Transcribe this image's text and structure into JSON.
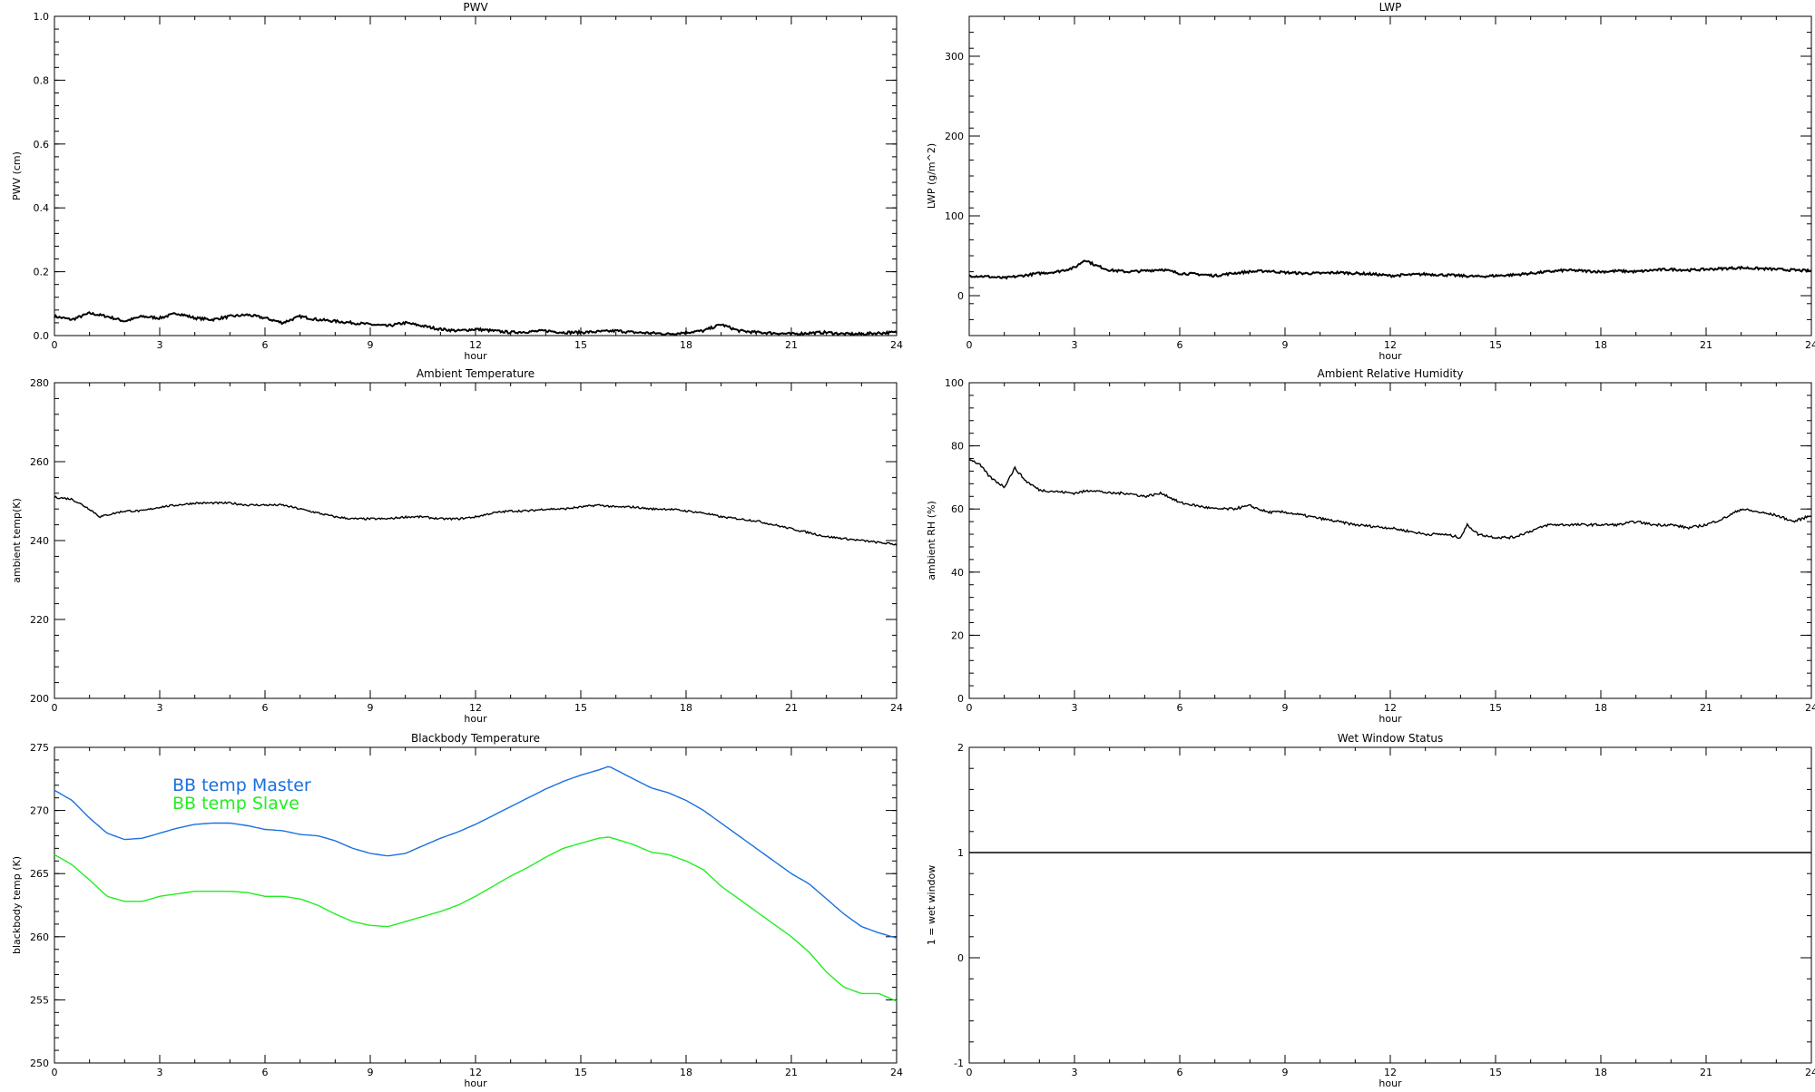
{
  "chart_data": [
    {
      "type": "line",
      "title": "PWV",
      "xlabel": "hour",
      "ylabel": "PWV (cm)",
      "xlim": [
        0,
        24
      ],
      "ylim": [
        0,
        1.0
      ],
      "xticks": [
        "0",
        "3",
        "6",
        "9",
        "12",
        "15",
        "18",
        "21",
        "24"
      ],
      "yticks": [
        "0.0",
        "0.2",
        "0.4",
        "0.6",
        "0.8",
        "1.0"
      ],
      "series": [
        {
          "color": "#000000",
          "noise": 0.004,
          "x": [
            0,
            0.5,
            1,
            1.5,
            2,
            2.5,
            3,
            3.5,
            4,
            4.5,
            5,
            5.5,
            6,
            6.5,
            7,
            7.5,
            8,
            8.5,
            9,
            9.5,
            10,
            10.5,
            11,
            11.5,
            12,
            12.5,
            13,
            13.5,
            14,
            14.5,
            15,
            15.5,
            16,
            16.5,
            17,
            17.5,
            18,
            18.5,
            19,
            19.5,
            20,
            20.5,
            21,
            21.5,
            22,
            22.5,
            23,
            23.5,
            24
          ],
          "y": [
            0.06,
            0.05,
            0.07,
            0.06,
            0.045,
            0.06,
            0.055,
            0.07,
            0.055,
            0.05,
            0.06,
            0.065,
            0.055,
            0.04,
            0.06,
            0.05,
            0.045,
            0.04,
            0.035,
            0.03,
            0.04,
            0.03,
            0.02,
            0.015,
            0.02,
            0.015,
            0.01,
            0.012,
            0.015,
            0.01,
            0.01,
            0.012,
            0.015,
            0.01,
            0.008,
            0.005,
            0.01,
            0.015,
            0.035,
            0.015,
            0.01,
            0.008,
            0.005,
            0.008,
            0.01,
            0.005,
            0.005,
            0.008,
            0.01
          ]
        }
      ]
    },
    {
      "type": "line",
      "title": "LWP",
      "xlabel": "hour",
      "ylabel": "LWP (g/m^2)",
      "xlim": [
        0,
        24
      ],
      "ylim": [
        -50,
        350
      ],
      "xticks": [
        "0",
        "3",
        "6",
        "9",
        "12",
        "15",
        "18",
        "21",
        "24"
      ],
      "yticks": [
        "0",
        "100",
        "200",
        "300"
      ],
      "series": [
        {
          "color": "#000000",
          "noise": 1.5,
          "x": [
            0,
            0.5,
            1,
            1.5,
            2,
            2.5,
            3,
            3.3,
            3.6,
            4,
            4.5,
            5,
            5.5,
            6,
            6.5,
            7,
            7.5,
            8,
            8.5,
            9,
            9.5,
            10,
            10.5,
            11,
            11.5,
            12,
            12.5,
            13,
            13.5,
            14,
            14.5,
            15,
            15.5,
            16,
            16.5,
            17,
            17.5,
            18,
            18.5,
            19,
            19.5,
            20,
            20.5,
            21,
            21.5,
            22,
            22.5,
            23,
            23.5,
            24
          ],
          "y": [
            25,
            24,
            22,
            25,
            28,
            30,
            35,
            45,
            38,
            32,
            30,
            31,
            33,
            28,
            27,
            25,
            28,
            30,
            31,
            29,
            28,
            28,
            29,
            28,
            27,
            25,
            26,
            27,
            26,
            25,
            24,
            25,
            26,
            28,
            30,
            32,
            31,
            30,
            31,
            30,
            32,
            33,
            32,
            33,
            34,
            35,
            34,
            33,
            32,
            31
          ]
        }
      ]
    },
    {
      "type": "line",
      "title": "Ambient Temperature",
      "xlabel": "hour",
      "ylabel": "ambient temp(K)",
      "xlim": [
        0,
        24
      ],
      "ylim": [
        200,
        280
      ],
      "xticks": [
        "0",
        "3",
        "6",
        "9",
        "12",
        "15",
        "18",
        "21",
        "24"
      ],
      "yticks": [
        "200",
        "220",
        "240",
        "260",
        "280"
      ],
      "series": [
        {
          "color": "#000000",
          "noise": 0.25,
          "x": [
            0,
            0.5,
            1,
            1.3,
            1.5,
            2,
            2.5,
            3,
            3.5,
            4,
            4.5,
            5,
            5.5,
            6,
            6.5,
            7,
            7.5,
            8,
            8.5,
            9,
            9.5,
            10,
            10.5,
            11,
            11.5,
            12,
            12.5,
            13,
            13.5,
            14,
            14.5,
            15,
            15.5,
            16,
            16.5,
            17,
            17.5,
            18,
            18.5,
            19,
            19.5,
            20,
            20.5,
            21,
            21.5,
            22,
            22.5,
            23,
            23.5,
            24
          ],
          "y": [
            251,
            250.5,
            248,
            246,
            246.5,
            247.5,
            247.5,
            248.5,
            249,
            249.5,
            249.5,
            249.5,
            249,
            249,
            249,
            248,
            247,
            246,
            245.5,
            245.5,
            245.5,
            246,
            246,
            245.5,
            245.5,
            246,
            247,
            247.5,
            247.5,
            248,
            248,
            248.5,
            249,
            248.5,
            248.5,
            248,
            248,
            247.5,
            247,
            246,
            245.5,
            245,
            244,
            243,
            242,
            241,
            240.5,
            240,
            239.5,
            239
          ]
        }
      ]
    },
    {
      "type": "line",
      "title": "Ambient Relative Humidity",
      "xlabel": "hour",
      "ylabel": "ambient RH (%)",
      "xlim": [
        0,
        24
      ],
      "ylim": [
        0,
        100
      ],
      "xticks": [
        "0",
        "3",
        "6",
        "9",
        "12",
        "15",
        "18",
        "21",
        "24"
      ],
      "yticks": [
        "0",
        "20",
        "40",
        "60",
        "80",
        "100"
      ],
      "series": [
        {
          "color": "#000000",
          "noise": 0.4,
          "x": [
            0,
            0.3,
            0.6,
            1,
            1.3,
            1.6,
            2,
            2.5,
            3,
            3.5,
            4,
            4.5,
            5,
            5.5,
            6,
            6.5,
            7,
            7.5,
            8,
            8.5,
            9,
            9.5,
            10,
            10.5,
            11,
            11.5,
            12,
            12.5,
            13,
            13.5,
            14,
            14.2,
            14.5,
            15,
            15.5,
            16,
            16.5,
            17,
            17.5,
            18,
            18.5,
            19,
            19.5,
            20,
            20.5,
            21,
            21.5,
            22,
            22.5,
            23,
            23.5,
            24
          ],
          "y": [
            76,
            74,
            70,
            67,
            73,
            69,
            66,
            65.5,
            65,
            66,
            65,
            65,
            64,
            65,
            62,
            61,
            60,
            60,
            61,
            59,
            59,
            58,
            57,
            56,
            55,
            54.5,
            54,
            53,
            52,
            52,
            51,
            55,
            52,
            51,
            51,
            53,
            55,
            55,
            55,
            55,
            55,
            56,
            55,
            55,
            54,
            55,
            57,
            60,
            59,
            58,
            56,
            58
          ]
        }
      ]
    },
    {
      "type": "line",
      "title": "Blackbody Temperature",
      "xlabel": "hour",
      "ylabel": "blackbody temp (K)",
      "xlim": [
        0,
        24
      ],
      "ylim": [
        250,
        275
      ],
      "xticks": [
        "0",
        "3",
        "6",
        "9",
        "12",
        "15",
        "18",
        "21",
        "24"
      ],
      "yticks": [
        "250",
        "255",
        "260",
        "265",
        "270",
        "275"
      ],
      "legend_position": "top-left",
      "series": [
        {
          "name": "BB temp Master",
          "color": "#1a6fe0",
          "noise": 0,
          "x": [
            0,
            0.5,
            1,
            1.5,
            2,
            2.5,
            3,
            3.5,
            4,
            4.5,
            5,
            5.5,
            6,
            6.5,
            7,
            7.5,
            8,
            8.5,
            9,
            9.5,
            10,
            10.5,
            11,
            11.5,
            12,
            12.5,
            13,
            13.5,
            14,
            14.5,
            15,
            15.5,
            15.8,
            16.5,
            17,
            17.5,
            18,
            18.5,
            19,
            19.5,
            20,
            20.5,
            21,
            21.5,
            22,
            22.5,
            23,
            23.5,
            24
          ],
          "y": [
            271.6,
            270.8,
            269.4,
            268.2,
            267.7,
            267.8,
            268.2,
            268.6,
            268.9,
            269,
            269,
            268.8,
            268.5,
            268.4,
            268.1,
            268,
            267.6,
            267,
            266.6,
            266.4,
            266.6,
            267.2,
            267.8,
            268.3,
            268.9,
            269.6,
            270.3,
            271,
            271.7,
            272.3,
            272.8,
            273.2,
            273.5,
            272.5,
            271.8,
            271.4,
            270.8,
            270,
            269,
            268,
            267,
            266,
            265,
            264.2,
            263,
            261.8,
            260.8,
            260.3,
            259.9
          ]
        },
        {
          "name": "BB temp Slave",
          "color": "#22ee22",
          "noise": 0,
          "x": [
            0,
            0.5,
            1,
            1.5,
            2,
            2.5,
            3,
            3.5,
            4,
            4.5,
            5,
            5.5,
            6,
            6.5,
            7,
            7.5,
            8,
            8.5,
            9,
            9.5,
            10,
            10.5,
            11,
            11.5,
            12,
            12.5,
            13,
            13.5,
            14,
            14.5,
            15,
            15.5,
            15.8,
            16.5,
            17,
            17.5,
            18,
            18.5,
            19,
            19.5,
            20,
            20.5,
            21,
            21.5,
            22,
            22.5,
            23,
            23.5,
            24
          ],
          "y": [
            266.5,
            265.7,
            264.5,
            263.2,
            262.8,
            262.8,
            263.2,
            263.4,
            263.6,
            263.6,
            263.6,
            263.5,
            263.2,
            263.2,
            263,
            262.5,
            261.8,
            261.2,
            260.9,
            260.8,
            261.2,
            261.6,
            262,
            262.5,
            263.2,
            264,
            264.8,
            265.5,
            266.3,
            267,
            267.4,
            267.8,
            267.9,
            267.3,
            266.7,
            266.5,
            266,
            265.3,
            264,
            263,
            262,
            261,
            260,
            258.8,
            257.2,
            256,
            255.5,
            255.5,
            254.9
          ]
        }
      ]
    },
    {
      "type": "line",
      "title": "Wet Window Status",
      "xlabel": "hour",
      "ylabel": "1 = wet window",
      "xlim": [
        0,
        24
      ],
      "ylim": [
        -1,
        2
      ],
      "xticks": [
        "0",
        "3",
        "6",
        "9",
        "12",
        "15",
        "18",
        "21",
        "24"
      ],
      "yticks": [
        "-1",
        "0",
        "1",
        "2"
      ],
      "series": [
        {
          "color": "#000000",
          "noise": 0,
          "x": [
            0,
            24
          ],
          "y": [
            1,
            1
          ]
        }
      ]
    }
  ]
}
